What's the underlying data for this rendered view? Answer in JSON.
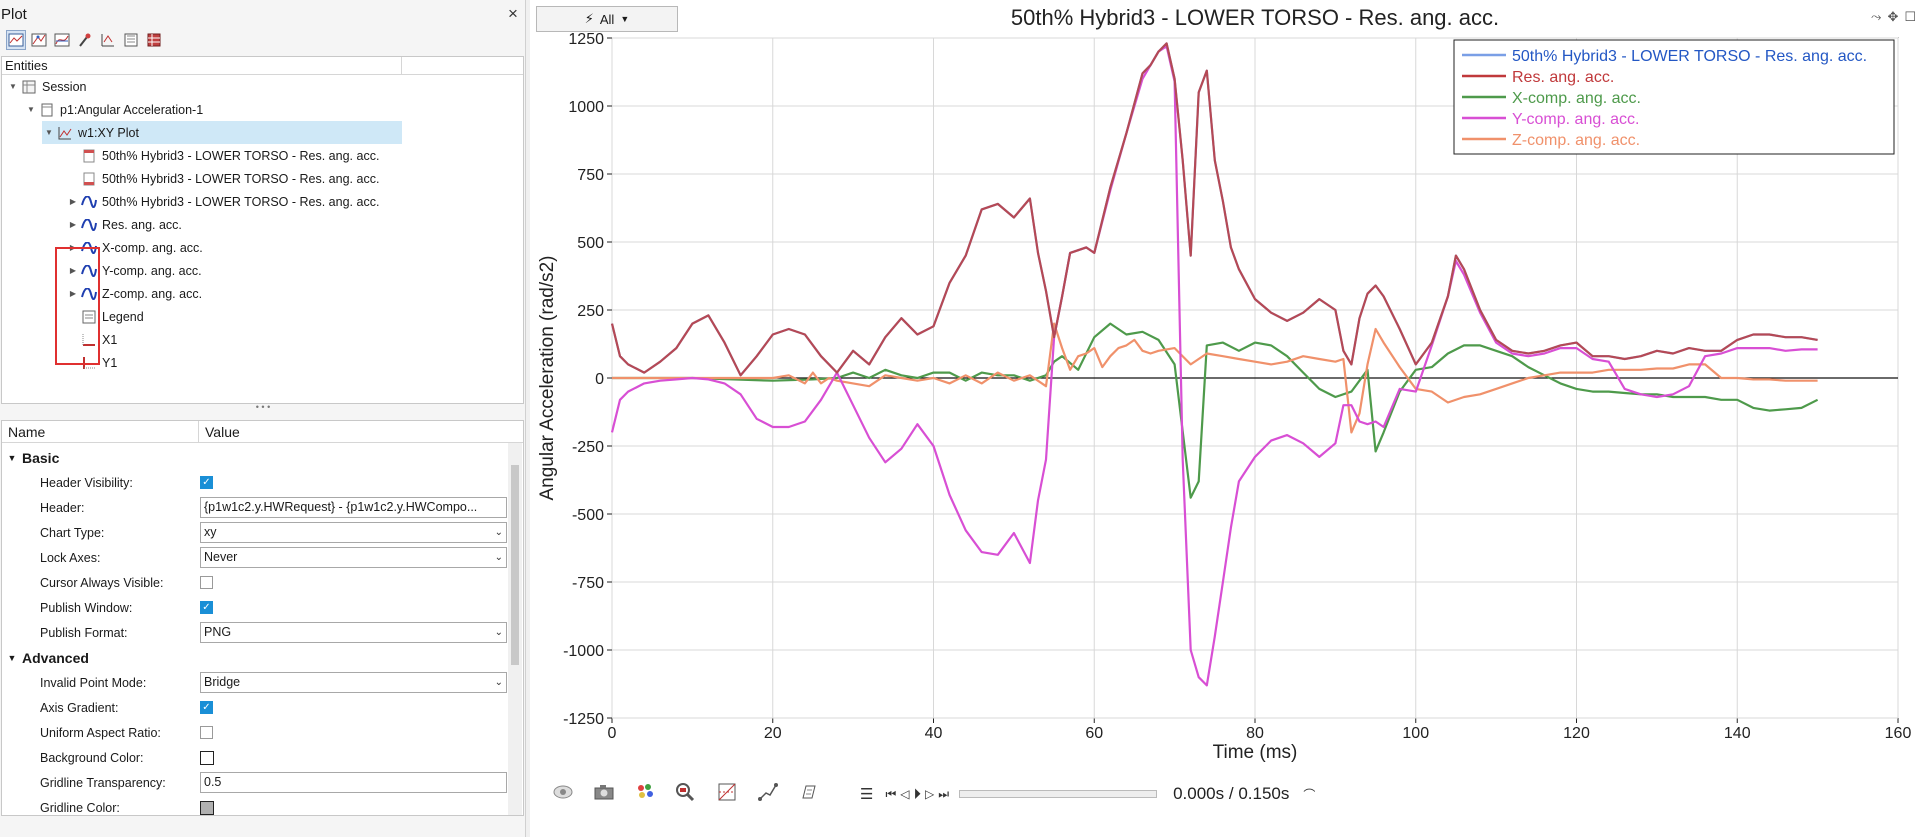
{
  "panel": {
    "title": "Plot",
    "close_label": "×"
  },
  "toolbar": {
    "icons": [
      "plot-browser-icon",
      "curve-icon",
      "multi-curve-icon",
      "probe-icon",
      "marker-icon",
      "fft-icon",
      "table-icon"
    ]
  },
  "tree": {
    "col_entities": "Entities",
    "col_2": "",
    "session": "Session",
    "page": "p1:Angular Acceleration-1",
    "window": "w1:XY Plot",
    "header_item": "50th% Hybrid3   - LOWER TORSO - Res. ang. acc.",
    "footer_item": "50th% Hybrid3   - LOWER TORSO - Res. ang. acc.",
    "curves": [
      "50th% Hybrid3   - LOWER TORSO - Res. ang. acc.",
      "Res. ang. acc.",
      "X-comp. ang. acc.",
      "Y-comp. ang. acc.",
      "Z-comp. ang. acc."
    ],
    "legend": "Legend",
    "x_axis": "X1",
    "y_axis": "Y1"
  },
  "props": {
    "col_name": "Name",
    "col_value": "Value",
    "basic_label": "Basic",
    "advanced_label": "Advanced",
    "header_visibility_label": "Header Visibility:",
    "header_label": "Header:",
    "header_value": "{p1w1c2.y.HWRequest} - {p1w1c2.y.HWCompo...",
    "chart_type_label": "Chart Type:",
    "chart_type_value": "xy",
    "lock_axes_label": "Lock Axes:",
    "lock_axes_value": "Never",
    "cursor_visible_label": "Cursor Always Visible:",
    "publish_window_label": "Publish Window:",
    "publish_format_label": "Publish Format:",
    "publish_format_value": "PNG",
    "invalid_point_label": "Invalid Point Mode:",
    "invalid_point_value": "Bridge",
    "axis_gradient_label": "Axis Gradient:",
    "uniform_aspect_label": "Uniform Aspect Ratio:",
    "background_color_label": "Background Color:",
    "gridline_transparency_label": "Gridline Transparency:",
    "gridline_transparency_value": "0.5",
    "gridline_color_label": "Gridline Color:",
    "checkbox_states": {
      "header_visibility": true,
      "cursor_visible": false,
      "publish_window": true,
      "axis_gradient": true,
      "uniform_aspect": false
    }
  },
  "plot": {
    "filter_label": "All",
    "time_current": "0.000s",
    "time_separator": "/",
    "time_total": "0.150s"
  },
  "chart_data": {
    "type": "line",
    "title": "50th% Hybrid3   - LOWER TORSO - Res. ang. acc.",
    "xlabel": "Time (ms)",
    "ylabel": "Angular Acceleration (rad/s2)",
    "xlim": [
      0,
      160
    ],
    "ylim": [
      -1250,
      1250
    ],
    "xticks": [
      0,
      20,
      40,
      60,
      80,
      100,
      120,
      140,
      160
    ],
    "yticks": [
      1250,
      1000,
      750,
      500,
      250,
      0,
      -250,
      -500,
      -750,
      -1000,
      -1250
    ],
    "grid": true,
    "legend_position": "top-right",
    "series": [
      {
        "name": "50th% Hybrid3   - LOWER TORSO - Res. ang. acc.",
        "color": "#7a9fe6",
        "x": [
          0,
          1,
          2,
          4,
          6,
          8,
          10,
          12,
          14,
          16,
          18,
          20,
          22,
          24,
          26,
          28,
          30,
          32,
          34,
          36,
          38,
          40,
          42,
          44,
          46,
          48,
          50,
          52,
          53,
          54,
          55,
          56,
          57,
          58,
          59,
          60,
          62,
          64,
          66,
          67,
          68,
          69,
          70,
          71,
          72,
          73,
          74,
          75,
          76,
          77,
          78,
          80,
          82,
          84,
          86,
          88,
          90,
          91,
          92,
          93,
          94,
          95,
          96,
          98,
          100,
          102,
          104,
          105,
          106,
          108,
          110,
          112,
          114,
          116,
          118,
          120,
          122,
          124,
          126,
          128,
          130,
          132,
          134,
          136,
          138,
          140,
          142,
          144,
          146,
          148,
          150
        ],
        "y": [
          200,
          80,
          50,
          20,
          60,
          110,
          200,
          230,
          130,
          10,
          80,
          160,
          180,
          160,
          80,
          20,
          100,
          50,
          150,
          220,
          160,
          190,
          350,
          450,
          620,
          640,
          590,
          660,
          460,
          320,
          150,
          300,
          460,
          470,
          480,
          460,
          700,
          900,
          1120,
          1150,
          1200,
          1230,
          1100,
          800,
          450,
          1050,
          1130,
          800,
          650,
          480,
          400,
          290,
          240,
          210,
          240,
          290,
          250,
          100,
          50,
          220,
          310,
          340,
          300,
          180,
          50,
          130,
          300,
          450,
          400,
          250,
          140,
          100,
          90,
          100,
          120,
          130,
          80,
          80,
          70,
          80,
          100,
          90,
          110,
          100,
          100,
          140,
          160,
          160,
          150,
          150,
          140
        ]
      },
      {
        "name": "Res. ang. acc.",
        "color": "#c0393b",
        "x": [
          0,
          1,
          2,
          4,
          6,
          8,
          10,
          12,
          14,
          16,
          18,
          20,
          22,
          24,
          26,
          28,
          30,
          32,
          34,
          36,
          38,
          40,
          42,
          44,
          46,
          48,
          50,
          52,
          53,
          54,
          55,
          56,
          57,
          58,
          59,
          60,
          62,
          64,
          66,
          67,
          68,
          69,
          70,
          71,
          72,
          73,
          74,
          75,
          76,
          77,
          78,
          80,
          82,
          84,
          86,
          88,
          90,
          91,
          92,
          93,
          94,
          95,
          96,
          98,
          100,
          102,
          104,
          105,
          106,
          108,
          110,
          112,
          114,
          116,
          118,
          120,
          122,
          124,
          126,
          128,
          130,
          132,
          134,
          136,
          138,
          140,
          142,
          144,
          146,
          148,
          150
        ],
        "y": [
          200,
          80,
          50,
          20,
          60,
          110,
          200,
          230,
          130,
          10,
          80,
          160,
          180,
          160,
          80,
          20,
          100,
          50,
          150,
          220,
          160,
          190,
          350,
          450,
          620,
          640,
          590,
          660,
          460,
          320,
          150,
          300,
          460,
          470,
          480,
          460,
          700,
          900,
          1120,
          1150,
          1200,
          1230,
          1100,
          800,
          450,
          1050,
          1130,
          800,
          650,
          480,
          400,
          290,
          240,
          210,
          240,
          290,
          250,
          100,
          50,
          220,
          310,
          340,
          300,
          180,
          50,
          130,
          300,
          450,
          400,
          250,
          140,
          100,
          90,
          100,
          120,
          130,
          80,
          80,
          70,
          80,
          100,
          90,
          110,
          100,
          100,
          140,
          160,
          160,
          150,
          150,
          140
        ]
      },
      {
        "name": "X-comp. ang. acc.",
        "color": "#4e9a4b",
        "x": [
          0,
          10,
          20,
          25,
          28,
          30,
          32,
          34,
          36,
          38,
          40,
          42,
          44,
          46,
          48,
          50,
          52,
          54,
          55,
          56,
          58,
          60,
          62,
          64,
          66,
          68,
          70,
          72,
          73,
          74,
          76,
          78,
          80,
          82,
          84,
          86,
          88,
          90,
          92,
          94,
          95,
          96,
          98,
          100,
          102,
          104,
          106,
          108,
          110,
          112,
          114,
          116,
          118,
          120,
          122,
          124,
          126,
          128,
          130,
          132,
          134,
          136,
          138,
          140,
          142,
          144,
          146,
          148,
          150
        ],
        "y": [
          0,
          0,
          -10,
          -5,
          0,
          20,
          0,
          30,
          10,
          0,
          20,
          20,
          -10,
          20,
          10,
          10,
          -10,
          10,
          60,
          80,
          30,
          150,
          200,
          160,
          170,
          140,
          50,
          -440,
          -380,
          120,
          130,
          100,
          130,
          120,
          80,
          20,
          -40,
          -70,
          -50,
          30,
          -270,
          -200,
          -50,
          30,
          40,
          90,
          120,
          120,
          100,
          80,
          40,
          10,
          -20,
          -40,
          -50,
          -50,
          -55,
          -60,
          -60,
          -70,
          -70,
          -70,
          -80,
          -80,
          -110,
          -120,
          -115,
          -110,
          -80
        ]
      },
      {
        "name": "Y-comp. ang. acc.",
        "color": "#d84fd4",
        "x": [
          0,
          1,
          2,
          4,
          6,
          8,
          10,
          12,
          14,
          16,
          18,
          20,
          22,
          24,
          26,
          28,
          30,
          32,
          34,
          36,
          38,
          40,
          42,
          44,
          46,
          48,
          50,
          52,
          53,
          54,
          55,
          56,
          57,
          58,
          59,
          60,
          62,
          64,
          66,
          67,
          68,
          69,
          70,
          71,
          72,
          73,
          74,
          75,
          76,
          77,
          78,
          80,
          82,
          84,
          86,
          88,
          90,
          91,
          92,
          93,
          94,
          95,
          96,
          98,
          100,
          102,
          104,
          105,
          106,
          108,
          110,
          112,
          114,
          116,
          118,
          120,
          122,
          124,
          126,
          128,
          130,
          132,
          134,
          136,
          138,
          140,
          142,
          144,
          146,
          148,
          150
        ],
        "y": [
          -200,
          -80,
          -50,
          -20,
          -10,
          -5,
          0,
          -5,
          -20,
          -60,
          -150,
          -180,
          -180,
          -160,
          -80,
          20,
          -100,
          -220,
          -310,
          -260,
          -170,
          -250,
          -430,
          -560,
          -640,
          -650,
          -570,
          -680,
          -450,
          -300,
          150,
          300,
          460,
          470,
          480,
          460,
          690,
          900,
          1100,
          1150,
          1200,
          1220,
          1090,
          -300,
          -1000,
          -1100,
          -1130,
          -950,
          -750,
          -550,
          -380,
          -290,
          -230,
          -210,
          -240,
          -290,
          -240,
          -100,
          -100,
          -160,
          -170,
          -160,
          -180,
          -40,
          -50,
          120,
          300,
          430,
          380,
          240,
          130,
          90,
          80,
          90,
          110,
          110,
          70,
          60,
          -40,
          -60,
          -70,
          -60,
          -30,
          80,
          90,
          110,
          110,
          110,
          100,
          105,
          105
        ]
      },
      {
        "name": "Z-comp. ang. acc.",
        "color": "#f0916b",
        "x": [
          0,
          10,
          20,
          22,
          24,
          25,
          26,
          27,
          28,
          30,
          32,
          34,
          36,
          38,
          40,
          42,
          44,
          46,
          48,
          50,
          52,
          54,
          55,
          56,
          57,
          58,
          59,
          60,
          61,
          62,
          63,
          64,
          65,
          66,
          67,
          68,
          70,
          72,
          74,
          76,
          78,
          80,
          82,
          84,
          86,
          88,
          90,
          91,
          92,
          93,
          94,
          95,
          96,
          98,
          100,
          102,
          104,
          106,
          108,
          110,
          112,
          114,
          116,
          118,
          120,
          122,
          124,
          126,
          128,
          130,
          132,
          134,
          136,
          138,
          140,
          142,
          144,
          146,
          148,
          150
        ],
        "y": [
          0,
          0,
          0,
          10,
          -20,
          20,
          -20,
          0,
          -10,
          -20,
          -30,
          10,
          0,
          -10,
          0,
          -20,
          10,
          -20,
          20,
          -10,
          10,
          -30,
          200,
          110,
          30,
          80,
          90,
          110,
          40,
          80,
          110,
          120,
          140,
          100,
          90,
          100,
          110,
          50,
          90,
          80,
          70,
          60,
          50,
          60,
          80,
          70,
          60,
          70,
          -200,
          -130,
          50,
          180,
          130,
          40,
          -40,
          -50,
          -90,
          -70,
          -60,
          -40,
          -20,
          0,
          10,
          20,
          20,
          20,
          30,
          30,
          30,
          35,
          35,
          50,
          50,
          0,
          0,
          -5,
          -5,
          -10,
          -10,
          -10
        ]
      }
    ]
  },
  "corner_icons": [
    "fit-icon",
    "pan-icon",
    "maximize-icon"
  ],
  "bottom_icons": [
    "view-icon",
    "camera-icon",
    "palette-icon",
    "zoom-icon",
    "measure-icon",
    "curve-edit-icon",
    "note-icon"
  ]
}
